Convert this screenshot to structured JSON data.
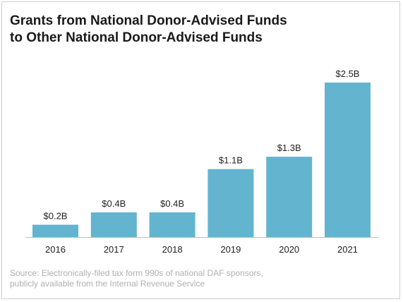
{
  "chart_data": {
    "type": "bar",
    "title": [
      "Grants from National Donor-Advised Funds",
      "to Other National Donor-Advised Funds"
    ],
    "categories": [
      "2016",
      "2017",
      "2018",
      "2019",
      "2020",
      "2021"
    ],
    "values": [
      0.2,
      0.4,
      0.4,
      1.1,
      1.3,
      2.5
    ],
    "value_labels": [
      "$0.2B",
      "$0.4B",
      "$0.4B",
      "$1.1B",
      "$1.3B",
      "$2.5B"
    ],
    "unit": "$ billions",
    "xlabel": "",
    "ylabel": "",
    "ylim": [
      0,
      2.5
    ],
    "grid": false,
    "legend": "none",
    "bar_color": "#63b4cf"
  },
  "source": {
    "lines": [
      "Source: Electronically-filed tax form 990s of national DAF sponsors,",
      "publicly available from the Internal Revenue Service"
    ]
  }
}
